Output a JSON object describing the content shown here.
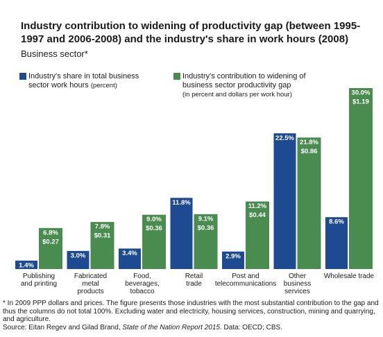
{
  "chart_data": {
    "type": "bar",
    "title": "Industry contribution to widening of productivity gap (between 1995-1997 and 2006-2008) and the industry's share in work hours (2008)",
    "subtitle": "Business sector*",
    "categories": [
      "Publishing\nand printing",
      "Fabricated\nmetal\nproducts",
      "Food,\nbeverages,\ntobacco",
      "Retail\ntrade",
      "Post and\ntelecommunications",
      "Other\nbusiness\nservices",
      "Wholesale trade"
    ],
    "series": [
      {
        "name": "Industry's share in total business sector work hours",
        "unit": "(percent)",
        "color": "#1d4a91",
        "values": [
          1.4,
          3.0,
          3.4,
          11.8,
          2.9,
          22.5,
          8.6
        ],
        "value_labels": [
          "1.4%",
          "3.0%",
          "3.4%",
          "11.8%",
          "2.9%",
          "22.5%",
          "8.6%"
        ]
      },
      {
        "name": "Industry's contribution to widening of business sector productivity gap",
        "unit": "(in percent and dollars per work hour)",
        "color": "#4a8b4f",
        "values": [
          6.8,
          7.8,
          9.0,
          9.1,
          11.2,
          21.8,
          30.0
        ],
        "value_labels": [
          "6.8%",
          "7.8%",
          "9.0%",
          "9.1%",
          "11.2%",
          "21.8%",
          "30.0%"
        ],
        "dollar_labels": [
          "$0.27",
          "$0.31",
          "$0.36",
          "$0.36",
          "$0.44",
          "$0.86",
          "$1.19"
        ]
      }
    ],
    "ylim": [
      0,
      30
    ],
    "note": "* In 2009 PPP dollars and prices. The figure presents those industries with the most substantial contribution to the gap and thus the columns do not total 100%. Excluding water and electricity, housing services, construction, mining and quarrying, and agriculture.",
    "source": {
      "prefix": "Source: Eitan Regev and Gilad Brand, ",
      "italic": "State of the Nation Report 2015",
      "suffix": ". Data: OECD; CBS."
    }
  }
}
